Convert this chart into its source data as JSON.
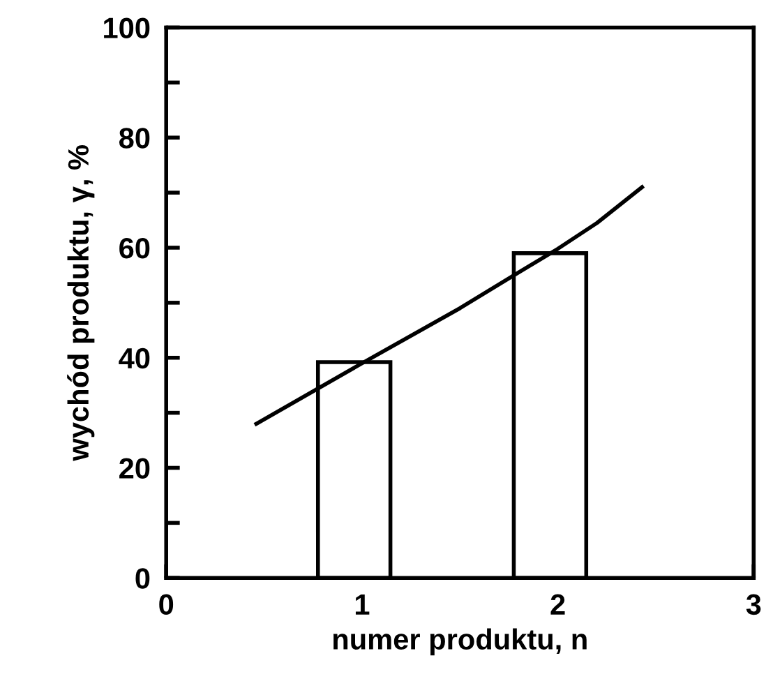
{
  "chart_data": {
    "type": "bar",
    "xlabel": "numer produktu, n",
    "ylabel": "wychód produktu, γ, %",
    "xlim": [
      0,
      3
    ],
    "ylim": [
      0,
      100
    ],
    "xticks": [
      0,
      1,
      2,
      3
    ],
    "yticks": [
      0,
      {
        "value": 10,
        "label": null
      },
      20,
      {
        "value": 30,
        "label": null
      },
      40,
      {
        "value": 50,
        "label": null
      },
      60,
      {
        "value": 70,
        "label": null
      },
      80,
      {
        "value": 90,
        "label": null
      },
      100
    ],
    "grid": false,
    "series": [
      {
        "color": "#ffffff",
        "x": [
          0.96,
          1.96
        ],
        "values": [
          39.2,
          59.0
        ]
      },
      {
        "type": "line",
        "color": "#000000",
        "marker": "none",
        "line_style": "solid",
        "x": [
          0.46,
          1.0,
          1.5,
          1.8,
          2.0,
          2.2,
          2.43
        ],
        "values": [
          28,
          39,
          49,
          55.5,
          59.8,
          64.5,
          71
        ]
      }
    ]
  }
}
